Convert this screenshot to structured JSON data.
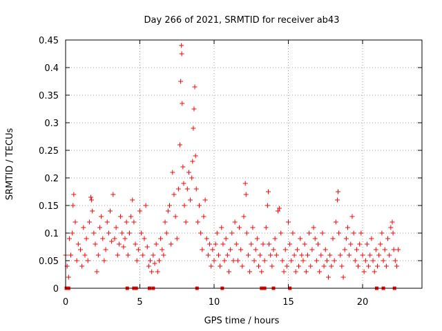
{
  "chart_data": {
    "type": "scatter",
    "title": "Day 266 of 2021, SRMTID for receiver ab43",
    "xlabel": "GPS time / hours",
    "ylabel": "SRMTID / TECUs",
    "xlim": [
      0,
      24.0
    ],
    "ylim": [
      0,
      0.45
    ],
    "x_ticks": [
      0,
      5,
      10,
      15,
      20
    ],
    "x_tick_labels": [
      "0",
      "5",
      "10",
      "15",
      "20"
    ],
    "y_ticks": [
      0,
      0.05,
      0.1,
      0.15,
      0.2,
      0.25,
      0.3,
      0.35,
      0.4,
      0.45
    ],
    "y_tick_labels": [
      "0",
      "0.05",
      "0.1",
      "0.15",
      "0.2",
      "0.25",
      "0.3",
      "0.35",
      "0.4",
      "0.45"
    ],
    "grid": true,
    "marker": "plus",
    "color": "#ff0000",
    "series": [
      {
        "name": "SRMTID",
        "points": [
          [
            0.0,
            0.06
          ],
          [
            0.1,
            0.04
          ],
          [
            0.2,
            0.02
          ],
          [
            0.25,
            0.09
          ],
          [
            0.35,
            0.06
          ],
          [
            0.45,
            0.1
          ],
          [
            0.5,
            0.15
          ],
          [
            0.55,
            0.17
          ],
          [
            0.65,
            0.12
          ],
          [
            0.75,
            0.05
          ],
          [
            0.85,
            0.08
          ],
          [
            1.0,
            0.07
          ],
          [
            1.1,
            0.04
          ],
          [
            1.2,
            0.11
          ],
          [
            1.3,
            0.06
          ],
          [
            1.4,
            0.09
          ],
          [
            1.5,
            0.05
          ],
          [
            1.6,
            0.12
          ],
          [
            1.7,
            0.165
          ],
          [
            1.75,
            0.16
          ],
          [
            1.8,
            0.14
          ],
          [
            1.9,
            0.1
          ],
          [
            2.0,
            0.08
          ],
          [
            2.1,
            0.03
          ],
          [
            2.2,
            0.06
          ],
          [
            2.3,
            0.11
          ],
          [
            2.4,
            0.13
          ],
          [
            2.5,
            0.09
          ],
          [
            2.6,
            0.05
          ],
          [
            2.7,
            0.07
          ],
          [
            2.8,
            0.12
          ],
          [
            2.9,
            0.1
          ],
          [
            3.0,
            0.14
          ],
          [
            3.1,
            0.085
          ],
          [
            3.2,
            0.17
          ],
          [
            3.3,
            0.09
          ],
          [
            3.4,
            0.11
          ],
          [
            3.5,
            0.06
          ],
          [
            3.6,
            0.08
          ],
          [
            3.7,
            0.13
          ],
          [
            3.8,
            0.1
          ],
          [
            3.9,
            0.075
          ],
          [
            4.0,
            0.09
          ],
          [
            4.1,
            0.12
          ],
          [
            4.2,
            0.06
          ],
          [
            4.3,
            0.1
          ],
          [
            4.4,
            0.13
          ],
          [
            4.5,
            0.16
          ],
          [
            4.6,
            0.12
          ],
          [
            4.7,
            0.08
          ],
          [
            4.8,
            0.05
          ],
          [
            4.9,
            0.07
          ],
          [
            5.0,
            0.14
          ],
          [
            5.1,
            0.1
          ],
          [
            5.2,
            0.06
          ],
          [
            5.3,
            0.09
          ],
          [
            5.4,
            0.15
          ],
          [
            5.5,
            0.075
          ],
          [
            5.6,
            0.04
          ],
          [
            5.7,
            0.05
          ],
          [
            5.8,
            0.03
          ],
          [
            5.9,
            0.06
          ],
          [
            6.0,
            0.045
          ],
          [
            6.1,
            0.08
          ],
          [
            6.2,
            0.03
          ],
          [
            6.3,
            0.05
          ],
          [
            6.4,
            0.09
          ],
          [
            6.5,
            0.07
          ],
          [
            6.6,
            0.06
          ],
          [
            6.7,
            0.12
          ],
          [
            6.8,
            0.1
          ],
          [
            6.9,
            0.14
          ],
          [
            7.0,
            0.15
          ],
          [
            7.1,
            0.08
          ],
          [
            7.2,
            0.21
          ],
          [
            7.3,
            0.17
          ],
          [
            7.4,
            0.13
          ],
          [
            7.5,
            0.09
          ],
          [
            7.6,
            0.18
          ],
          [
            7.7,
            0.26
          ],
          [
            7.75,
            0.375
          ],
          [
            7.8,
            0.44
          ],
          [
            7.82,
            0.425
          ],
          [
            7.85,
            0.335
          ],
          [
            7.9,
            0.22
          ],
          [
            7.95,
            0.19
          ],
          [
            8.0,
            0.15
          ],
          [
            8.1,
            0.12
          ],
          [
            8.2,
            0.18
          ],
          [
            8.3,
            0.21
          ],
          [
            8.4,
            0.16
          ],
          [
            8.5,
            0.2
          ],
          [
            8.55,
            0.23
          ],
          [
            8.6,
            0.29
          ],
          [
            8.65,
            0.325
          ],
          [
            8.7,
            0.365
          ],
          [
            8.75,
            0.24
          ],
          [
            8.8,
            0.18
          ],
          [
            8.9,
            0.12
          ],
          [
            9.0,
            0.15
          ],
          [
            9.1,
            0.1
          ],
          [
            9.2,
            0.07
          ],
          [
            9.3,
            0.13
          ],
          [
            9.4,
            0.16
          ],
          [
            9.5,
            0.09
          ],
          [
            9.6,
            0.06
          ],
          [
            9.7,
            0.08
          ],
          [
            9.8,
            0.04
          ],
          [
            9.9,
            0.07
          ],
          [
            10.0,
            0.05
          ],
          [
            10.1,
            0.08
          ],
          [
            10.2,
            0.1
          ],
          [
            10.3,
            0.06
          ],
          [
            10.4,
            0.04
          ],
          [
            10.5,
            0.11
          ],
          [
            10.6,
            0.08
          ],
          [
            10.7,
            0.05
          ],
          [
            10.8,
            0.09
          ],
          [
            10.9,
            0.06
          ],
          [
            11.0,
            0.03
          ],
          [
            11.1,
            0.07
          ],
          [
            11.2,
            0.1
          ],
          [
            11.3,
            0.05
          ],
          [
            11.4,
            0.12
          ],
          [
            11.5,
            0.08
          ],
          [
            11.6,
            0.05
          ],
          [
            11.7,
            0.11
          ],
          [
            11.8,
            0.07
          ],
          [
            11.9,
            0.04
          ],
          [
            12.0,
            0.13
          ],
          [
            12.1,
            0.19
          ],
          [
            12.15,
            0.17
          ],
          [
            12.2,
            0.1
          ],
          [
            12.3,
            0.06
          ],
          [
            12.4,
            0.03
          ],
          [
            12.5,
            0.08
          ],
          [
            12.6,
            0.11
          ],
          [
            12.7,
            0.05
          ],
          [
            12.8,
            0.07
          ],
          [
            12.9,
            0.09
          ],
          [
            13.0,
            0.04
          ],
          [
            13.1,
            0.06
          ],
          [
            13.2,
            0.03
          ],
          [
            13.3,
            0.08
          ],
          [
            13.4,
            0.05
          ],
          [
            13.5,
            0.11
          ],
          [
            13.6,
            0.15
          ],
          [
            13.65,
            0.175
          ],
          [
            13.7,
            0.08
          ],
          [
            13.8,
            0.06
          ],
          [
            13.9,
            0.04
          ],
          [
            14.0,
            0.07
          ],
          [
            14.1,
            0.09
          ],
          [
            14.2,
            0.06
          ],
          [
            14.3,
            0.14
          ],
          [
            14.4,
            0.145
          ],
          [
            14.5,
            0.1
          ],
          [
            14.6,
            0.05
          ],
          [
            14.7,
            0.03
          ],
          [
            14.8,
            0.07
          ],
          [
            14.9,
            0.04
          ],
          [
            15.0,
            0.12
          ],
          [
            15.1,
            0.08
          ],
          [
            15.2,
            0.05
          ],
          [
            15.3,
            0.1
          ],
          [
            15.4,
            0.06
          ],
          [
            15.5,
            0.03
          ],
          [
            15.6,
            0.07
          ],
          [
            15.7,
            0.04
          ],
          [
            15.8,
            0.09
          ],
          [
            15.9,
            0.06
          ],
          [
            16.0,
            0.05
          ],
          [
            16.1,
            0.08
          ],
          [
            16.2,
            0.03
          ],
          [
            16.3,
            0.06
          ],
          [
            16.4,
            0.1
          ],
          [
            16.5,
            0.04
          ],
          [
            16.6,
            0.07
          ],
          [
            16.7,
            0.11
          ],
          [
            16.8,
            0.09
          ],
          [
            16.9,
            0.05
          ],
          [
            17.0,
            0.08
          ],
          [
            17.1,
            0.03
          ],
          [
            17.2,
            0.06
          ],
          [
            17.3,
            0.1
          ],
          [
            17.4,
            0.04
          ],
          [
            17.5,
            0.07
          ],
          [
            17.6,
            0.05
          ],
          [
            17.7,
            0.02
          ],
          [
            17.8,
            0.06
          ],
          [
            17.9,
            0.04
          ],
          [
            18.0,
            0.09
          ],
          [
            18.1,
            0.05
          ],
          [
            18.2,
            0.12
          ],
          [
            18.3,
            0.16
          ],
          [
            18.35,
            0.175
          ],
          [
            18.4,
            0.1
          ],
          [
            18.5,
            0.06
          ],
          [
            18.6,
            0.04
          ],
          [
            18.7,
            0.02
          ],
          [
            18.8,
            0.07
          ],
          [
            18.9,
            0.09
          ],
          [
            19.0,
            0.11
          ],
          [
            19.1,
            0.06
          ],
          [
            19.2,
            0.08
          ],
          [
            19.3,
            0.13
          ],
          [
            19.4,
            0.1
          ],
          [
            19.5,
            0.05
          ],
          [
            19.6,
            0.07
          ],
          [
            19.7,
            0.04
          ],
          [
            19.8,
            0.08
          ],
          [
            19.9,
            0.1
          ],
          [
            20.0,
            0.06
          ],
          [
            20.1,
            0.03
          ],
          [
            20.2,
            0.05
          ],
          [
            20.3,
            0.08
          ],
          [
            20.4,
            0.04
          ],
          [
            20.5,
            0.06
          ],
          [
            20.6,
            0.09
          ],
          [
            20.7,
            0.05
          ],
          [
            20.8,
            0.03
          ],
          [
            20.9,
            0.07
          ],
          [
            21.0,
            0.04
          ],
          [
            21.1,
            0.06
          ],
          [
            21.2,
            0.08
          ],
          [
            21.3,
            0.1
          ],
          [
            21.4,
            0.05
          ],
          [
            21.5,
            0.07
          ],
          [
            21.6,
            0.04
          ],
          [
            21.7,
            0.09
          ],
          [
            21.8,
            0.06
          ],
          [
            21.9,
            0.11
          ],
          [
            22.0,
            0.12
          ],
          [
            22.05,
            0.1
          ],
          [
            22.1,
            0.07
          ],
          [
            22.2,
            0.05
          ],
          [
            22.3,
            0.04
          ],
          [
            22.4,
            0.07
          ]
        ]
      }
    ],
    "data_gaps_at_zero": [
      0.05,
      0.2,
      4.15,
      4.6,
      4.75,
      5.65,
      5.9,
      8.85,
      10.55,
      13.2,
      13.4,
      14.0,
      15.1,
      20.95,
      21.4,
      22.15
    ]
  }
}
